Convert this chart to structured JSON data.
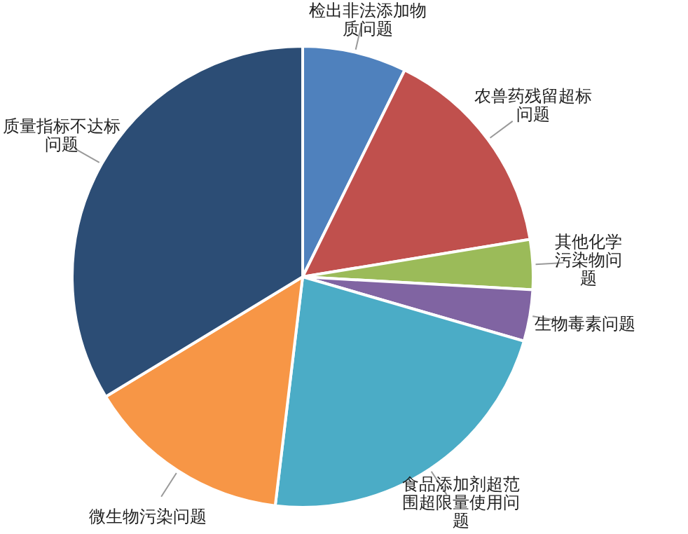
{
  "chart_data": {
    "type": "pie",
    "categories": [
      "检出非法添加物质问题",
      "农兽药残留超标问题",
      "其他化学污染物问题",
      "生物毒素问题",
      "食品添加剂超范围超限量使用问题",
      "微生物污染问题",
      "质量指标不达标问题"
    ],
    "values": [
      7.3,
      15.1,
      3.5,
      3.6,
      22.4,
      14.4,
      33.7
    ],
    "colors": [
      "#4f81bd",
      "#c0504d",
      "#9bbb59",
      "#8064a2",
      "#4bacc6",
      "#f79646",
      "#2c4d75"
    ],
    "legend": false
  }
}
